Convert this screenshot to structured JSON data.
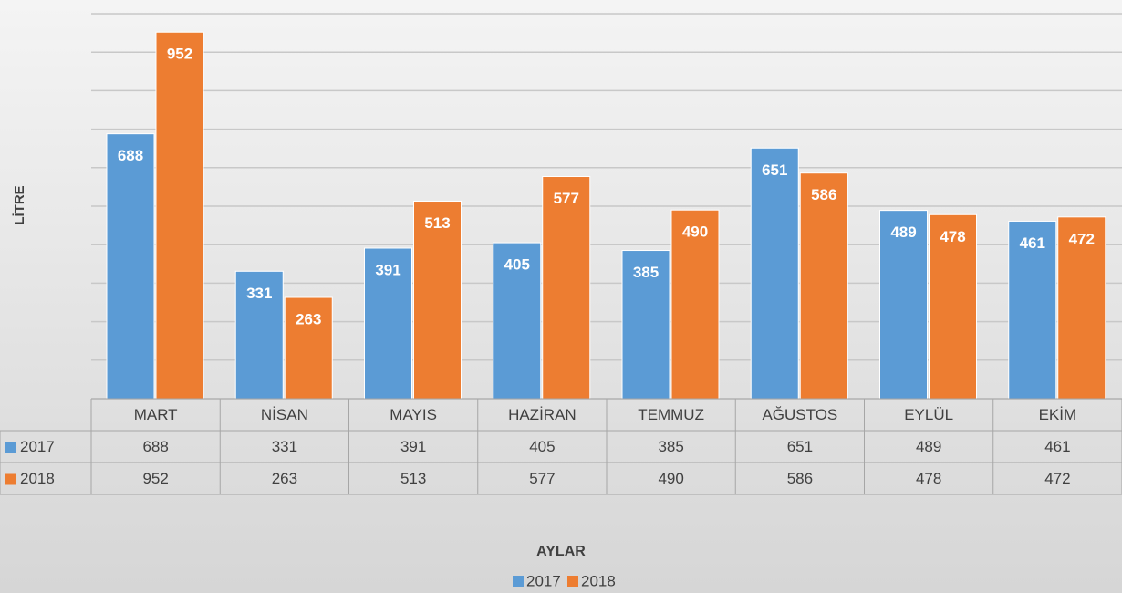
{
  "chart_data": {
    "type": "bar",
    "x_label": "AYLAR",
    "y_label": "LİTRE",
    "categories": [
      "MART",
      "NİSAN",
      "MAYIS",
      "HAZİRAN",
      "TEMMUZ",
      "AĞUSTOS",
      "EYLÜL",
      "EKİM"
    ],
    "series": [
      {
        "name": "2017",
        "color": "#5b9bd5",
        "values": [
          688,
          331,
          391,
          405,
          385,
          651,
          489,
          461
        ]
      },
      {
        "name": "2018",
        "color": "#ed7d31",
        "values": [
          952,
          263,
          513,
          577,
          490,
          586,
          478,
          472
        ]
      }
    ],
    "ylim": [
      0,
      1000
    ],
    "yticks": [
      0,
      100,
      200,
      300,
      400,
      500,
      600,
      700,
      800,
      900,
      1000
    ],
    "grid": true,
    "legend": "bottom",
    "data_table": true
  }
}
